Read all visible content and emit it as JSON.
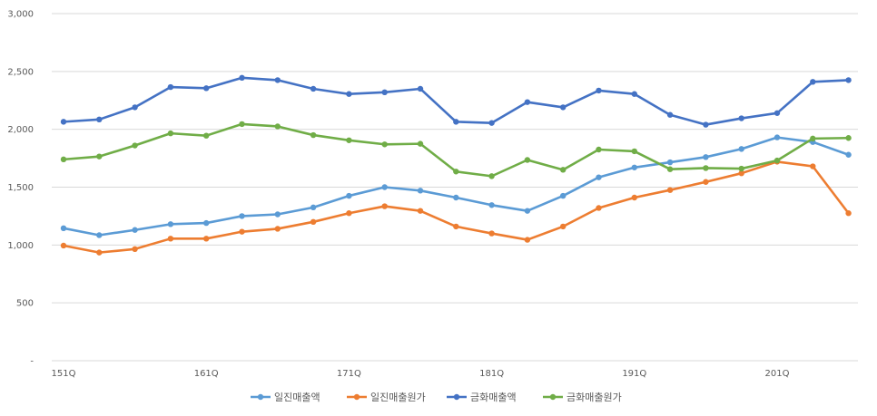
{
  "chart_data": {
    "type": "line",
    "title": "",
    "xlabel": "",
    "ylabel": "",
    "ylim": [
      0,
      3000
    ],
    "y_ticks": [
      {
        "value": 0,
        "label": "-"
      },
      {
        "value": 500,
        "label": "500"
      },
      {
        "value": 1000,
        "label": "1,000"
      },
      {
        "value": 1500,
        "label": "1,500"
      },
      {
        "value": 2000,
        "label": "2,000"
      },
      {
        "value": 2500,
        "label": "2,500"
      },
      {
        "value": 3000,
        "label": "3,000"
      }
    ],
    "x_tick_labels": [
      {
        "index": 0,
        "label": "151Q"
      },
      {
        "index": 4,
        "label": "161Q"
      },
      {
        "index": 8,
        "label": "171Q"
      },
      {
        "index": 12,
        "label": "181Q"
      },
      {
        "index": 16,
        "label": "191Q"
      },
      {
        "index": 20,
        "label": "201Q"
      }
    ],
    "grid": true,
    "legend_position": "bottom",
    "series": [
      {
        "name": "일진매출액",
        "color": "#5b9bd5",
        "values": [
          1145,
          1085,
          1130,
          1180,
          1190,
          1250,
          1265,
          1325,
          1425,
          1500,
          1470,
          1410,
          1345,
          1295,
          1425,
          1585,
          1670,
          1715,
          1760,
          1830,
          1930,
          1890,
          1780
        ]
      },
      {
        "name": "일진매출원가",
        "color": "#ed7d31",
        "values": [
          995,
          935,
          965,
          1055,
          1055,
          1115,
          1140,
          1200,
          1275,
          1335,
          1295,
          1160,
          1100,
          1045,
          1160,
          1320,
          1410,
          1475,
          1545,
          1620,
          1720,
          1680,
          1275
        ]
      },
      {
        "name": "금화매출액",
        "color": "#4472c4",
        "values": [
          2065,
          2085,
          2190,
          2365,
          2355,
          2445,
          2425,
          2350,
          2305,
          2320,
          2350,
          2065,
          2055,
          2235,
          2190,
          2335,
          2305,
          2125,
          2040,
          2095,
          2140,
          2410,
          2425
        ]
      },
      {
        "name": "금화매출원가",
        "color": "#70ad47",
        "values": [
          1740,
          1765,
          1860,
          1965,
          1945,
          2045,
          2025,
          1950,
          1905,
          1870,
          1875,
          1635,
          1595,
          1735,
          1650,
          1825,
          1810,
          1655,
          1665,
          1660,
          1730,
          1920,
          1925
        ]
      }
    ]
  }
}
